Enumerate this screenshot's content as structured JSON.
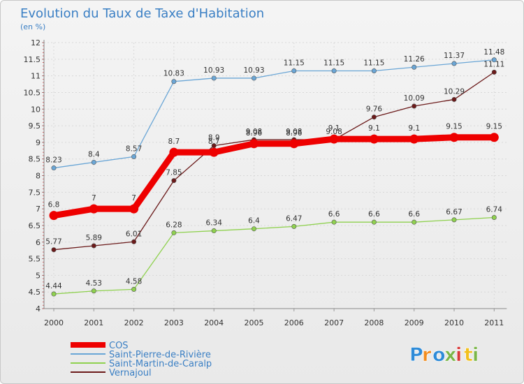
{
  "chart_data": {
    "type": "line",
    "title": "Evolution du Taux de Taxe d'Habitation",
    "subtitle": "(en %)",
    "categories": [
      "2000",
      "2001",
      "2002",
      "2003",
      "2004",
      "2005",
      "2006",
      "2007",
      "2008",
      "2009",
      "2010",
      "2011"
    ],
    "ylim": [
      4,
      12
    ],
    "y_ticks": [
      "4",
      "4.5",
      "5",
      "5.5",
      "6",
      "6.5",
      "7",
      "7.5",
      "8",
      "8.5",
      "9",
      "9.5",
      "10",
      "10.5",
      "11",
      "11.5",
      "12"
    ],
    "grid": true,
    "legend_position": "bottom-left",
    "series": [
      {
        "name": "Vernajoul",
        "color": "#6b1a1a",
        "values": [
          5.77,
          5.89,
          6.01,
          7.85,
          8.9,
          9.08,
          9.08,
          9.08,
          9.76,
          10.09,
          10.29,
          11.11
        ],
        "labels": [
          "5.77",
          "5.89",
          "6.01",
          "7.85",
          "8.9",
          "9.08",
          "9.08",
          "9.08",
          "9.76",
          "10.09",
          "10.29",
          "11.11"
        ]
      },
      {
        "name": "Saint-Martin-de-Caralp",
        "color": "#8fd14f",
        "values": [
          4.44,
          4.53,
          4.58,
          6.28,
          6.34,
          6.4,
          6.47,
          6.6,
          6.6,
          6.6,
          6.67,
          6.74
        ],
        "labels": [
          "4.44",
          "4.53",
          "4.58",
          "6.28",
          "6.34",
          "6.4",
          "6.47",
          "6.6",
          "6.6",
          "6.6",
          "6.67",
          "6.74"
        ]
      },
      {
        "name": "Saint-Pierre-de-Rivière",
        "color": "#6aa6d6",
        "values": [
          8.23,
          8.4,
          8.57,
          10.83,
          10.93,
          10.93,
          11.15,
          11.15,
          11.15,
          11.26,
          11.37,
          11.48
        ],
        "labels": [
          "8.23",
          "8.4",
          "8.57",
          "10.83",
          "10.93",
          "10.93",
          "11.15",
          "11.15",
          "11.15",
          "11.26",
          "11.37",
          "11.48"
        ]
      },
      {
        "name": "COS",
        "color": "#ee0000",
        "values": [
          6.8,
          7,
          7,
          8.7,
          8.7,
          8.96,
          8.96,
          9.1,
          9.1,
          9.1,
          9.15,
          9.15
        ],
        "labels": [
          "6.8",
          "7",
          "7",
          "8.7",
          "8.7",
          "8.96",
          "8.96",
          "9.1",
          "9.1",
          "9.1",
          "9.15",
          "9.15"
        ]
      }
    ],
    "legend": [
      "COS",
      "Saint-Pierre-de-Rivière",
      "Saint-Martin-de-Caralp",
      "Vernajoul"
    ]
  },
  "logo": {
    "text": "Proxiti",
    "colors": [
      "#2e8bd8",
      "#f28c1e",
      "#2e8bd8",
      "#7ab648",
      "#d83a3a",
      "#f2c01e",
      "#7ab648"
    ]
  }
}
